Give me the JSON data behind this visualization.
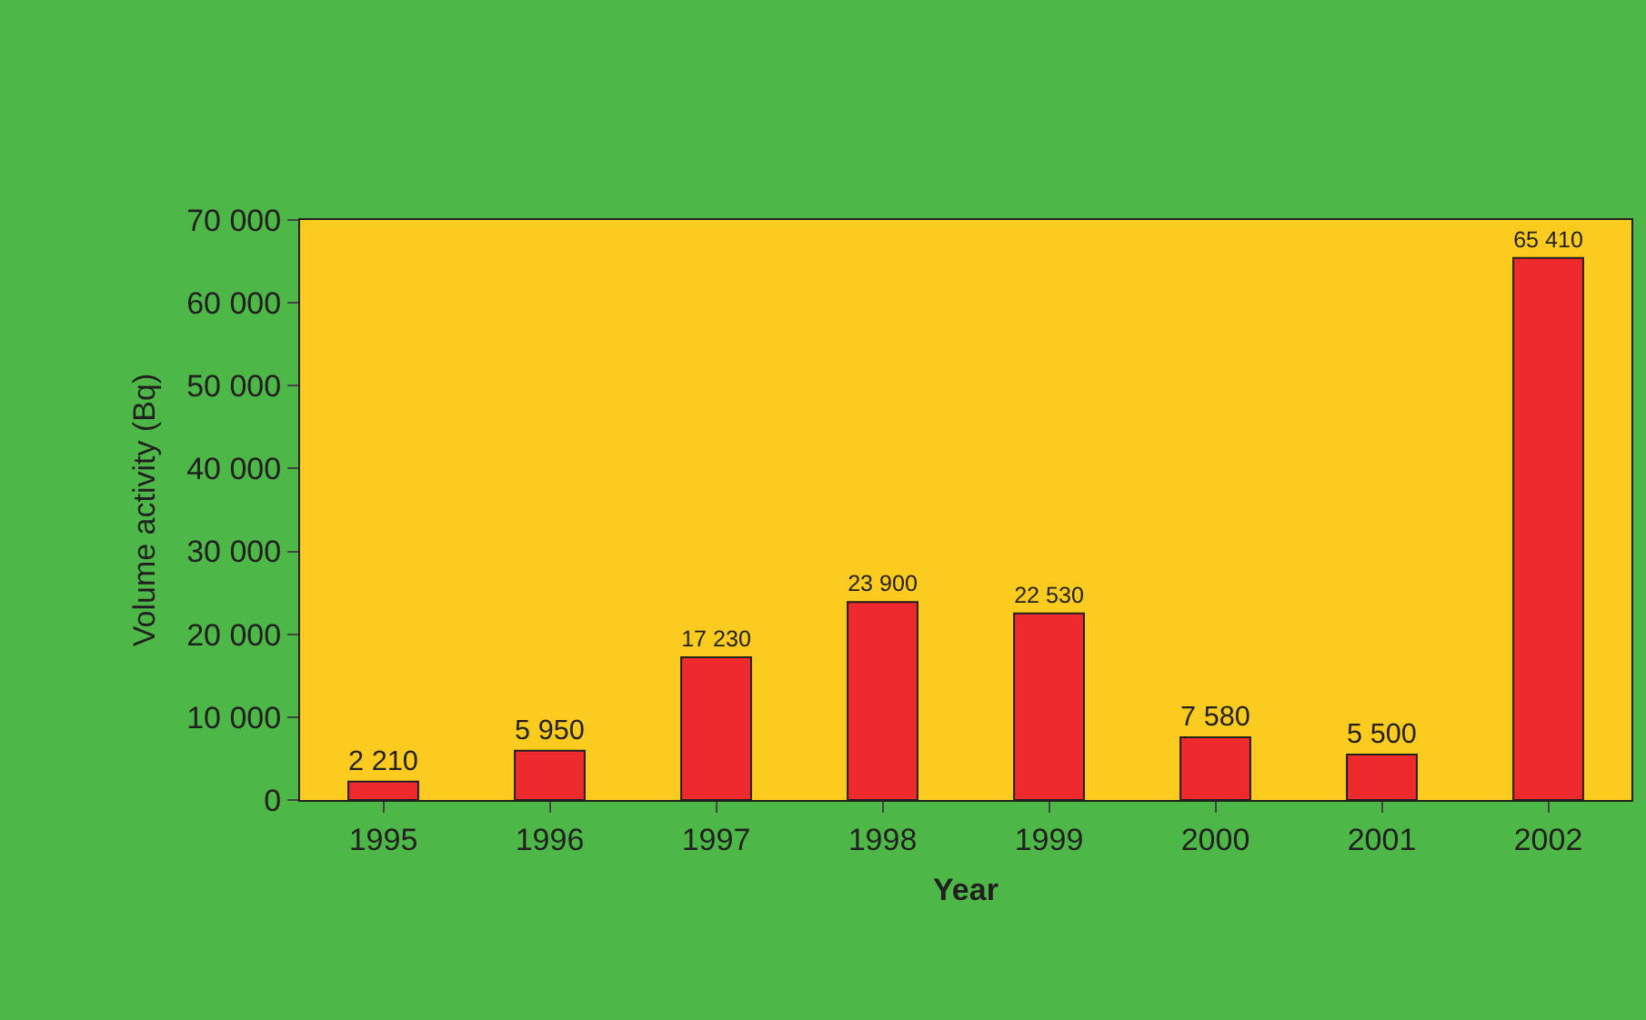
{
  "chart_data": {
    "type": "bar",
    "xlabel": "Year",
    "ylabel": "Volume activity (Bq)",
    "categories": [
      "1995",
      "1996",
      "1997",
      "1998",
      "1999",
      "2000",
      "2001",
      "2002"
    ],
    "values": [
      2210,
      5950,
      17230,
      23900,
      22530,
      7580,
      5500,
      65410
    ],
    "value_labels": [
      "2 210",
      "5 950",
      "17 230",
      "23 900",
      "22 530",
      "7 580",
      "5 500",
      "65 410"
    ],
    "color": "#ee2a2f",
    "ylim": [
      0,
      70000
    ],
    "yticks": [
      0,
      {
        "value": 10000,
        "label": "10 000"
      },
      {
        "value": 20000,
        "label": "20 000"
      },
      {
        "value": 30000,
        "label": "30 000"
      },
      {
        "value": 40000,
        "label": "40 000"
      },
      {
        "value": 50000,
        "label": "50 000"
      },
      {
        "value": 60000,
        "label": "60 000"
      },
      {
        "value": 70000,
        "label": "70 000"
      }
    ],
    "grid": false,
    "legend": false
  }
}
